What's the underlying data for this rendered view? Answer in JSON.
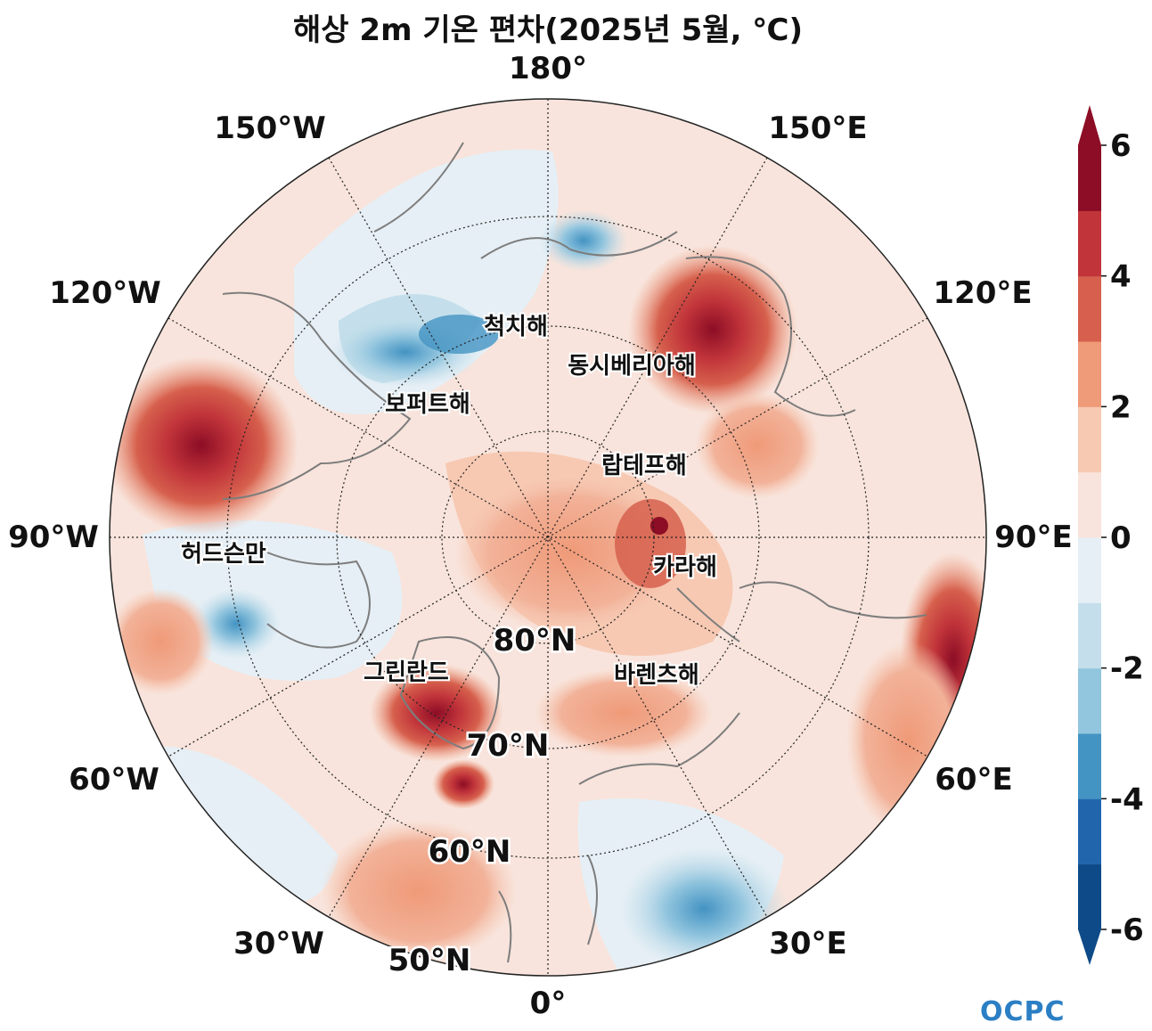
{
  "title": "해상 2m 기온 편차(2025년 5월, ℃)",
  "longitude_labels": {
    "lon_180": "180°",
    "lon_150e": "150°E",
    "lon_120e": "120°E",
    "lon_90e": "90°E",
    "lon_60e": "60°E",
    "lon_30e": "30°E",
    "lon_0": "0°",
    "lon_30w": "30°W",
    "lon_60w": "60°W",
    "lon_90w": "90°W",
    "lon_120w": "120°W",
    "lon_150w": "150°W"
  },
  "latitude_labels": {
    "lat_80": "80°N",
    "lat_70": "70°N",
    "lat_60": "60°N",
    "lat_50": "50°N"
  },
  "sea_labels": {
    "chukchi": "척치해",
    "east_siberian": "동시베리아해",
    "beaufort": "보퍼트해",
    "laptev": "랍테프해",
    "hudson": "허드슨만",
    "kara": "카라해",
    "greenland": "그린란드",
    "barents": "바렌츠해"
  },
  "colorbar": {
    "ticks": [
      "6",
      "4",
      "2",
      "0",
      "-2",
      "-4",
      "-6"
    ],
    "levels": [
      -6,
      -5,
      -4,
      -3,
      -2,
      -1,
      0,
      1,
      2,
      3,
      4,
      5,
      6
    ],
    "colors": [
      "#0d4a87",
      "#2166ac",
      "#4393c3",
      "#92c5de",
      "#c4dfeb",
      "#e6eff5",
      "#f8e4dc",
      "#f7c9b3",
      "#ef9a78",
      "#d6604d",
      "#c1343a",
      "#8c0d25"
    ]
  },
  "logo": {
    "text": "OCPC"
  }
}
